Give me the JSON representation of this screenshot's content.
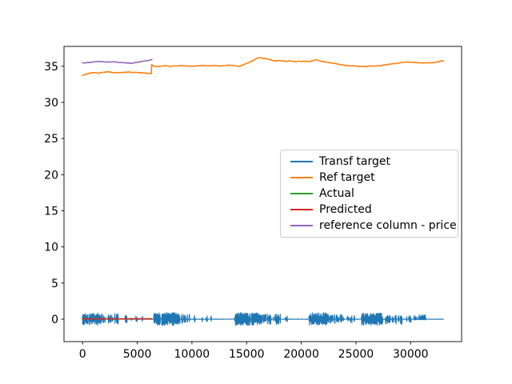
{
  "figure": {
    "background_color": "#ffffff",
    "axes_edge_color": "#000000",
    "legend_border_color": "#cccccc"
  },
  "chart_data": {
    "type": "line",
    "title": "",
    "xlabel": "",
    "ylabel": "",
    "xlim": [
      -1700,
      34660
    ],
    "ylim": [
      -3.1,
      37.75
    ],
    "xticks": [
      0,
      5000,
      10000,
      15000,
      20000,
      25000,
      30000
    ],
    "yticks": [
      0,
      5,
      10,
      15,
      20,
      25,
      30,
      35
    ],
    "grid": false,
    "legend": {
      "position": "center-right"
    },
    "series": [
      {
        "name": "Transf target",
        "color": "#1f77b4",
        "kind": "noise",
        "x_start": 0,
        "x_end": 33000,
        "baseline": 0,
        "bursts": [
          {
            "x0": 0,
            "x1": 1700,
            "density": 0.88,
            "up": 0.85,
            "down": 0.8
          },
          {
            "x0": 1700,
            "x1": 3500,
            "density": 0.3,
            "up": 0.8,
            "down": 0.7
          },
          {
            "x0": 3900,
            "x1": 4050,
            "density": 0.5,
            "up": 0.55,
            "down": 0.5
          },
          {
            "x0": 4400,
            "x1": 4550,
            "density": 0.5,
            "up": 0.5,
            "down": 0.4
          },
          {
            "x0": 4850,
            "x1": 5000,
            "density": 0.5,
            "up": 0.5,
            "down": 0.35
          },
          {
            "x0": 5350,
            "x1": 5500,
            "density": 0.4,
            "up": 0.45,
            "down": 0.4
          },
          {
            "x0": 6500,
            "x1": 8800,
            "density": 0.85,
            "up": 0.9,
            "down": 0.85
          },
          {
            "x0": 8800,
            "x1": 9800,
            "density": 0.4,
            "up": 0.7,
            "down": 0.65
          },
          {
            "x0": 10200,
            "x1": 10380,
            "density": 0.5,
            "up": 0.5,
            "down": 0.5
          },
          {
            "x0": 10800,
            "x1": 10980,
            "density": 0.5,
            "up": 0.5,
            "down": 0.4
          },
          {
            "x0": 11300,
            "x1": 11470,
            "density": 0.4,
            "up": 0.5,
            "down": 0.4
          },
          {
            "x0": 11700,
            "x1": 11820,
            "density": 0.4,
            "up": 0.6,
            "down": 0.3
          },
          {
            "x0": 13900,
            "x1": 16100,
            "density": 0.85,
            "up": 0.9,
            "down": 0.85
          },
          {
            "x0": 16100,
            "x1": 18100,
            "density": 0.42,
            "up": 0.8,
            "down": 0.7
          },
          {
            "x0": 18550,
            "x1": 18750,
            "density": 0.5,
            "up": 0.5,
            "down": 0.45
          },
          {
            "x0": 19000,
            "x1": 19120,
            "density": 0.4,
            "up": 0.45,
            "down": 0.3
          },
          {
            "x0": 20700,
            "x1": 22400,
            "density": 0.82,
            "up": 0.9,
            "down": 0.8
          },
          {
            "x0": 22400,
            "x1": 23900,
            "density": 0.32,
            "up": 0.7,
            "down": 0.6
          },
          {
            "x0": 24200,
            "x1": 24900,
            "density": 0.3,
            "up": 0.5,
            "down": 0.5
          },
          {
            "x0": 25500,
            "x1": 27350,
            "density": 0.85,
            "up": 0.85,
            "down": 0.85
          },
          {
            "x0": 27350,
            "x1": 29250,
            "density": 0.4,
            "up": 0.55,
            "down": 0.75
          },
          {
            "x0": 29400,
            "x1": 30100,
            "density": 0.25,
            "up": 0.45,
            "down": 0.45
          },
          {
            "x0": 30200,
            "x1": 31400,
            "density": 0.45,
            "up": 0.65,
            "down": 0.12
          }
        ]
      },
      {
        "name": "Ref target",
        "color": "#ff7f0e",
        "kind": "keypoints",
        "points": [
          [
            0,
            33.75
          ],
          [
            300,
            33.9
          ],
          [
            700,
            34.05
          ],
          [
            1000,
            34.1
          ],
          [
            1400,
            34.05
          ],
          [
            1800,
            34.15
          ],
          [
            2200,
            34.25
          ],
          [
            2600,
            34.15
          ],
          [
            3000,
            34.1
          ],
          [
            3600,
            34.15
          ],
          [
            4200,
            34.2
          ],
          [
            4800,
            34.15
          ],
          [
            5400,
            34.1
          ],
          [
            5800,
            34.05
          ],
          [
            6200,
            34.0
          ],
          [
            6280,
            33.95
          ],
          [
            6320,
            35.25
          ],
          [
            6450,
            35.05
          ],
          [
            6700,
            34.95
          ],
          [
            7100,
            35.0
          ],
          [
            7500,
            35.05
          ],
          [
            8000,
            35.0
          ],
          [
            8500,
            35.05
          ],
          [
            9000,
            35.1
          ],
          [
            9500,
            35.05
          ],
          [
            10000,
            35.0
          ],
          [
            10500,
            35.05
          ],
          [
            11000,
            35.1
          ],
          [
            11500,
            35.05
          ],
          [
            12000,
            35.1
          ],
          [
            12500,
            35.05
          ],
          [
            13000,
            35.1
          ],
          [
            13500,
            35.15
          ],
          [
            14000,
            35.05
          ],
          [
            14400,
            35.0
          ],
          [
            14800,
            35.3
          ],
          [
            15200,
            35.5
          ],
          [
            15600,
            35.8
          ],
          [
            16000,
            36.15
          ],
          [
            16200,
            36.2
          ],
          [
            16500,
            36.1
          ],
          [
            16900,
            36.0
          ],
          [
            17300,
            35.85
          ],
          [
            17700,
            35.75
          ],
          [
            18100,
            35.8
          ],
          [
            18500,
            35.7
          ],
          [
            18900,
            35.75
          ],
          [
            19300,
            35.65
          ],
          [
            19800,
            35.7
          ],
          [
            20300,
            35.65
          ],
          [
            20800,
            35.7
          ],
          [
            21100,
            35.75
          ],
          [
            21350,
            35.95
          ],
          [
            21600,
            35.8
          ],
          [
            22000,
            35.65
          ],
          [
            22400,
            35.55
          ],
          [
            22800,
            35.45
          ],
          [
            23200,
            35.35
          ],
          [
            23700,
            35.2
          ],
          [
            24200,
            35.1
          ],
          [
            24700,
            35.05
          ],
          [
            25200,
            35.0
          ],
          [
            25700,
            34.95
          ],
          [
            26200,
            35.0
          ],
          [
            26700,
            35.05
          ],
          [
            27200,
            35.1
          ],
          [
            27700,
            35.2
          ],
          [
            28200,
            35.3
          ],
          [
            28700,
            35.4
          ],
          [
            29200,
            35.5
          ],
          [
            29700,
            35.6
          ],
          [
            30200,
            35.55
          ],
          [
            30700,
            35.5
          ],
          [
            31200,
            35.45
          ],
          [
            31700,
            35.5
          ],
          [
            32200,
            35.55
          ],
          [
            32600,
            35.65
          ],
          [
            33000,
            35.75
          ]
        ]
      },
      {
        "name": "Actual",
        "color": "#2ca02c",
        "kind": "keypoints",
        "points": [
          [
            0,
            0.05
          ],
          [
            6300,
            0.05
          ]
        ]
      },
      {
        "name": "Predicted",
        "color": "#d62728",
        "kind": "keypoints",
        "points": [
          [
            0,
            0.05
          ],
          [
            6300,
            0.05
          ]
        ]
      },
      {
        "name": "reference column - price",
        "color": "#9467bd",
        "kind": "keypoints",
        "points": [
          [
            0,
            35.45
          ],
          [
            500,
            35.5
          ],
          [
            1000,
            35.6
          ],
          [
            1400,
            35.7
          ],
          [
            1700,
            35.65
          ],
          [
            2100,
            35.6
          ],
          [
            2500,
            35.6
          ],
          [
            2900,
            35.62
          ],
          [
            3300,
            35.55
          ],
          [
            3700,
            35.5
          ],
          [
            4100,
            35.45
          ],
          [
            4400,
            35.42
          ],
          [
            4800,
            35.5
          ],
          [
            5200,
            35.6
          ],
          [
            5600,
            35.7
          ],
          [
            6000,
            35.8
          ],
          [
            6200,
            35.85
          ],
          [
            6350,
            35.95
          ]
        ]
      }
    ]
  }
}
